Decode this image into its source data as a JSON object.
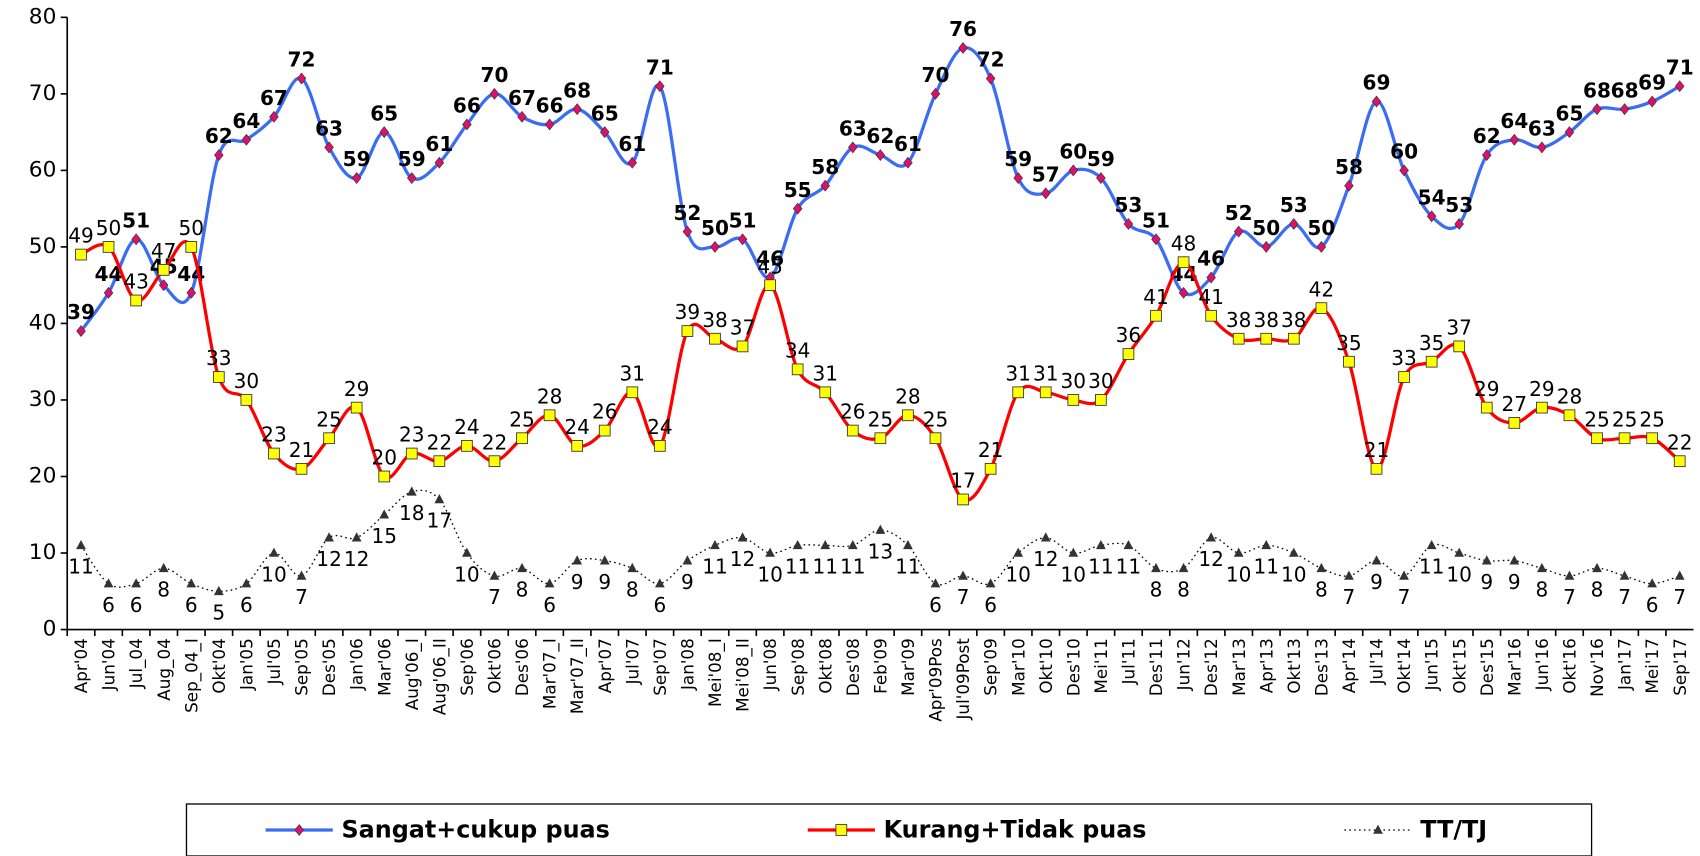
{
  "chart_data": {
    "type": "line",
    "categories": [
      "Apr'04",
      "Jun'04",
      "Jul_04",
      "Aug_04",
      "Sep_04_I",
      "Okt'04",
      "Jan'05",
      "Jul'05",
      "Sep'05",
      "Des'05",
      "Jan'06",
      "Mar'06",
      "Aug'06_I",
      "Aug'06_II",
      "Sep'06",
      "Okt'06",
      "Des'06",
      "Mar'07_I",
      "Mar'07_II",
      "Apr'07",
      "Jul'07",
      "Sep'07",
      "Jan'08",
      "Mei'08_I",
      "Mei'08_II",
      "Jun'08",
      "Sep'08",
      "Okt'08",
      "Des'08",
      "Feb'09",
      "Mar'09",
      "Apr'09Pos",
      "Jul'09Post",
      "Sep'09",
      "Mar'10",
      "Okt'10",
      "Des'10",
      "Mei'11",
      "Jul'11",
      "Des'11",
      "Jun'12",
      "Des'12",
      "Mar'13",
      "Apr'13",
      "Okt'13",
      "Des'13",
      "Apr'14",
      "Jul'14",
      "Okt'14",
      "Jun'15",
      "Okt'15",
      "Des'15",
      "Mar'16",
      "Jun'16",
      "Okt'16",
      "Nov'16",
      "Jan'17",
      "Mei'17",
      "Sep'17"
    ],
    "series": [
      {
        "name": "Sangat+cukup puas",
        "color": "#3a6cf4",
        "marker": "diamond",
        "marker_color": "#e0106a",
        "line_style": "solid",
        "values": [
          39,
          44,
          51,
          45,
          44,
          62,
          64,
          67,
          72,
          63,
          59,
          65,
          59,
          61,
          66,
          70,
          67,
          66,
          68,
          65,
          61,
          71,
          52,
          50,
          51,
          46,
          55,
          58,
          63,
          62,
          61,
          70,
          76,
          72,
          59,
          57,
          60,
          59,
          53,
          51,
          44,
          46,
          52,
          50,
          53,
          50,
          58,
          69,
          60,
          54,
          53,
          62,
          64,
          63,
          65,
          68,
          68,
          69,
          71
        ]
      },
      {
        "name": "Kurang+Tidak puas",
        "color": "#ff0000",
        "marker": "square",
        "marker_color": "#ffff00",
        "line_style": "solid",
        "values": [
          49,
          50,
          43,
          47,
          50,
          33,
          30,
          23,
          21,
          25,
          29,
          20,
          23,
          22,
          24,
          22,
          25,
          28,
          24,
          26,
          31,
          24,
          39,
          38,
          37,
          45,
          34,
          31,
          26,
          25,
          28,
          25,
          17,
          21,
          31,
          31,
          30,
          30,
          36,
          41,
          48,
          41,
          38,
          38,
          38,
          42,
          35,
          21,
          33,
          35,
          37,
          29,
          27,
          29,
          28,
          25,
          25,
          25,
          22
        ]
      },
      {
        "name": "TT/TJ",
        "color": "#000000",
        "marker": "triangle",
        "marker_color": "#333333",
        "line_style": "dotted",
        "values": [
          11,
          6,
          6,
          8,
          6,
          5,
          6,
          10,
          7,
          12,
          12,
          15,
          18,
          17,
          10,
          7,
          8,
          6,
          9,
          9,
          8,
          6,
          9,
          11,
          12,
          10,
          11,
          11,
          11,
          13,
          11,
          6,
          7,
          6,
          10,
          12,
          10,
          11,
          11,
          8,
          8,
          12,
          10,
          11,
          10,
          8,
          7,
          9,
          7,
          11,
          10,
          9,
          9,
          8,
          7,
          8,
          7,
          6,
          7
        ]
      }
    ],
    "ylim": [
      0,
      80
    ],
    "yticks": [
      0,
      10,
      20,
      30,
      40,
      50,
      60,
      70,
      80
    ],
    "grid": false,
    "legend": "bottom",
    "smooth": true
  }
}
